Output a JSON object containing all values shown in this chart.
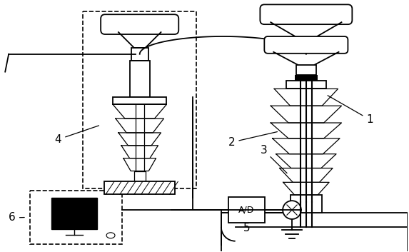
{
  "bg_color": "#ffffff",
  "line_color": "#000000",
  "lw": 1.3,
  "lw_thin": 0.9,
  "lw_thick": 2.0
}
